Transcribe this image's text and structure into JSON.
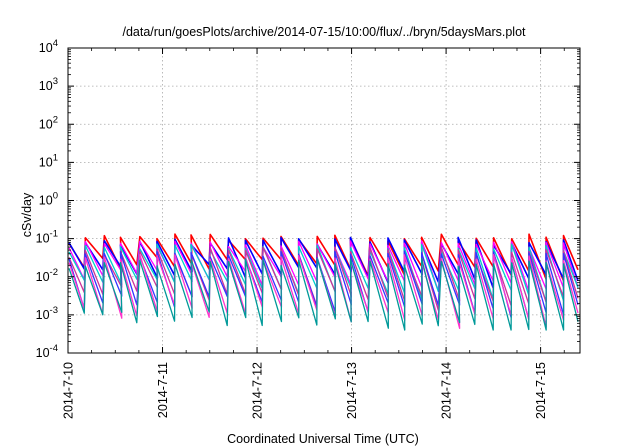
{
  "chart_data": {
    "type": "line",
    "title": "/data/run/goesPlots/archive/2014-07-15/10:00/flux/../bryn/5daysMars.plot",
    "xlabel": "Coordinated Universal Time (UTC)",
    "ylabel": "cSv/day",
    "xlim": [
      "2014-07-10T00:00",
      "2014-07-15T10:00"
    ],
    "ylim": [
      0.0001,
      10000
    ],
    "yscale": "log",
    "grid": true,
    "x_ticks": [
      "2014-7-10",
      "2014-7-11",
      "2014-7-12",
      "2014-7-13",
      "2014-7-14",
      "2014-7-15"
    ],
    "y_ticks": [
      {
        "value": 0.0001,
        "base": "10",
        "exp": "-4"
      },
      {
        "value": 0.001,
        "base": "10",
        "exp": "-3"
      },
      {
        "value": 0.01,
        "base": "10",
        "exp": "-2"
      },
      {
        "value": 0.1,
        "base": "10",
        "exp": "-1"
      },
      {
        "value": 1,
        "base": "10",
        "exp": "0"
      },
      {
        "value": 10,
        "base": "10",
        "exp": "1"
      },
      {
        "value": 100,
        "base": "10",
        "exp": "2"
      },
      {
        "value": 1000,
        "base": "10",
        "exp": "3"
      },
      {
        "value": 10000,
        "base": "10",
        "exp": "4"
      }
    ],
    "pattern": {
      "description_of_data": "sawtooth: sharp rise at each cycle start, decay until next cycle",
      "cycle_period_hours": 4.5,
      "peak_values": [
        0.11,
        0.09,
        0.075,
        0.06,
        0.05,
        0.04,
        0.032,
        0.025
      ],
      "trough_values": [
        0.025,
        0.016,
        0.011,
        0.007,
        0.004,
        0.0025,
        0.0014,
        0.0009
      ],
      "late_trough_min": 0.0005
    },
    "series": [
      {
        "color": "#ff0000"
      },
      {
        "color": "#0000ff"
      },
      {
        "color": "#ff00ff"
      },
      {
        "color": "#00cccc"
      },
      {
        "color": "#cc3399"
      },
      {
        "color": "#3333ff"
      },
      {
        "color": "#ff33cc"
      },
      {
        "color": "#009999"
      }
    ]
  }
}
